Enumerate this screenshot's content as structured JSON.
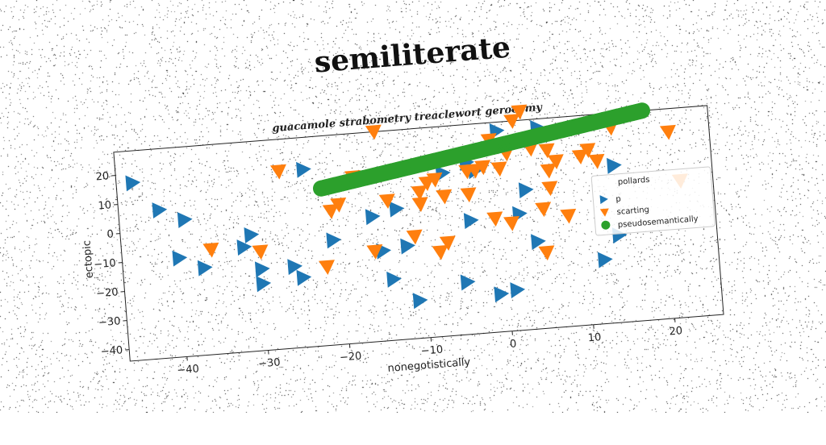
{
  "main_title": "semiliterate",
  "chart_data": {
    "type": "scatter",
    "title": "guacamole strabometry treaclewort gerocomy",
    "xlabel": "nonegotistically",
    "ylabel": "ectopic",
    "xlim": [
      -47,
      26
    ],
    "ylim": [
      -44,
      28
    ],
    "xticks": [
      -40,
      -30,
      -20,
      -10,
      0,
      10,
      20
    ],
    "yticks": [
      -40,
      -30,
      -20,
      -10,
      0,
      10,
      20
    ],
    "grid": false,
    "legend_position": "right",
    "legend_title": "pollards",
    "series": [
      {
        "name": "p",
        "marker": "triangle-right",
        "color": "#1f77b4",
        "points": [
          [
            -45,
            17
          ],
          [
            -42,
            7
          ],
          [
            -39,
            3
          ],
          [
            -40,
            -10
          ],
          [
            -37,
            -14
          ],
          [
            -31,
            -4
          ],
          [
            -32,
            -8
          ],
          [
            -30,
            -16
          ],
          [
            -30,
            -21
          ],
          [
            -26,
            -16
          ],
          [
            -25,
            -20
          ],
          [
            -24,
            17
          ],
          [
            -21,
            -8
          ],
          [
            -16,
            -1
          ],
          [
            -15,
            -13
          ],
          [
            -14,
            -23
          ],
          [
            -13,
            1
          ],
          [
            -12,
            -12
          ],
          [
            -11,
            -31
          ],
          [
            -7,
            12
          ],
          [
            -5,
            -26
          ],
          [
            -4,
            -5
          ],
          [
            -3,
            12
          ],
          [
            -4,
            15
          ],
          [
            -1,
            -31
          ],
          [
            1,
            -30
          ],
          [
            0,
            25
          ],
          [
            2,
            -4
          ],
          [
            3,
            4
          ],
          [
            4,
            -14
          ],
          [
            5,
            25
          ],
          [
            12,
            -22
          ],
          [
            14,
            -14
          ],
          [
            14,
            10
          ]
        ]
      },
      {
        "name": "scarting",
        "marker": "triangle-down",
        "color": "#ff7f0e",
        "points": [
          [
            -36,
            -8
          ],
          [
            -30,
            -10
          ],
          [
            -27,
            17
          ],
          [
            -22,
            -17
          ],
          [
            -21,
            2
          ],
          [
            -20,
            4
          ],
          [
            -18,
            13
          ],
          [
            -15,
            28
          ],
          [
            -16,
            -13
          ],
          [
            -14,
            4
          ],
          [
            -11,
            -9
          ],
          [
            -10,
            2
          ],
          [
            -10,
            6
          ],
          [
            -9,
            9
          ],
          [
            -8,
            10
          ],
          [
            -7,
            4
          ],
          [
            -8,
            -15
          ],
          [
            -7,
            -12
          ],
          [
            -4,
            4
          ],
          [
            -4,
            12
          ],
          [
            -3,
            12
          ],
          [
            -1,
            22
          ],
          [
            -2,
            13
          ],
          [
            0,
            12
          ],
          [
            0,
            20
          ],
          [
            1,
            17
          ],
          [
            -1,
            -5
          ],
          [
            1,
            -7
          ],
          [
            2,
            28
          ],
          [
            3,
            31
          ],
          [
            4,
            18
          ],
          [
            6,
            10
          ],
          [
            6,
            4
          ],
          [
            7,
            13
          ],
          [
            8,
            -6
          ],
          [
            5,
            -3
          ],
          [
            5,
            -18
          ],
          [
            6,
            17
          ],
          [
            10,
            14
          ],
          [
            11,
            16
          ],
          [
            12,
            12
          ],
          [
            14,
            23
          ],
          [
            21,
            20
          ],
          [
            22,
            3
          ]
        ]
      },
      {
        "name": "pseudosemantically",
        "marker": "circle",
        "color": "#2ca02c",
        "line": {
          "x_start": -22,
          "x_end": 18,
          "y_start": 10,
          "y_end": 28,
          "count": 160
        }
      }
    ]
  }
}
